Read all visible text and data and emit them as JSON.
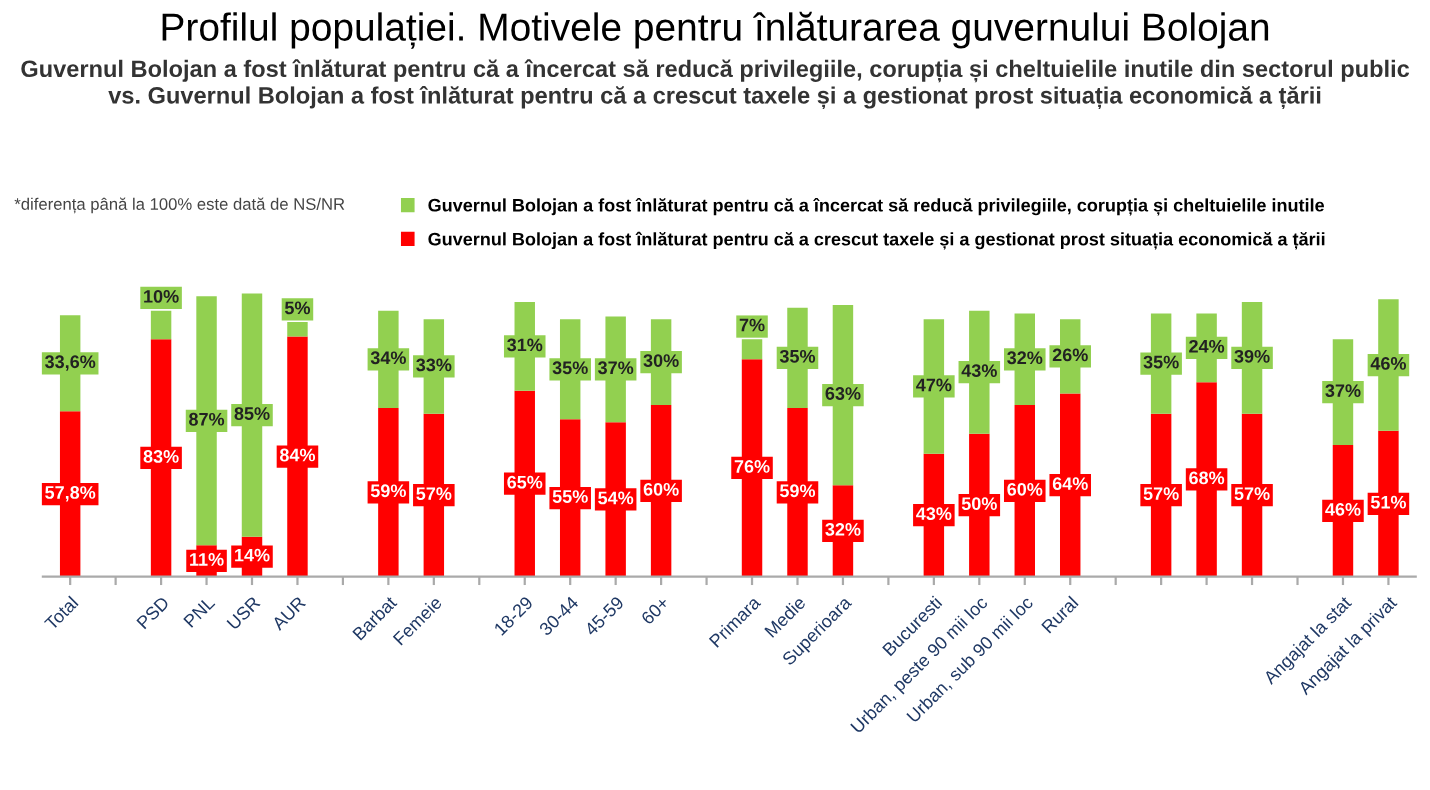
{
  "chart_data": {
    "type": "bar",
    "stacked": true,
    "title": "Profilul populației. Motivele pentru înlăturarea guvernului Bolojan",
    "subtitle": "Guvernul Bolojan a fost înlăturat pentru că a încercat să reducă privilegiile, corupția și cheltuielile inutile din sectorul public vs. Guvernul Bolojan a fost înlăturat pentru că a crescut taxele și a gestionat prost situația economică a țării",
    "categories": [
      "Total",
      null,
      "PSD",
      "PNL",
      "USR",
      "AUR",
      null,
      "Barbat",
      "Femeie",
      null,
      "18-29",
      "30-44",
      "45-59",
      "60+",
      null,
      "Primara",
      "Medie",
      "Superioara",
      null,
      "Bucuresti",
      "Urban, peste 90 mii loc",
      "Urban, sub 90 mii loc",
      "Rural",
      null,
      null,
      null,
      null,
      null,
      "Angajat la stat",
      "Angajat la privat"
    ],
    "series": [
      {
        "name": "Guvernul Bolojan a fost înlăturat pentru că a crescut taxele și a gestionat prost situația economică a țării",
        "color": "#ff0000",
        "values": [
          57.8,
          null,
          83,
          11,
          14,
          84,
          null,
          59,
          57,
          null,
          65,
          55,
          54,
          60,
          null,
          76,
          59,
          32,
          null,
          43,
          50,
          60,
          64,
          null,
          57,
          68,
          57,
          null,
          46,
          51
        ],
        "value_labels": [
          "57,8%",
          null,
          "83%",
          "11%",
          "14%",
          "84%",
          null,
          "59%",
          "57%",
          null,
          "65%",
          "55%",
          "54%",
          "60%",
          null,
          "76%",
          "59%",
          "32%",
          null,
          "43%",
          "50%",
          "60%",
          "64%",
          null,
          "57%",
          "68%",
          "57%",
          null,
          "46%",
          "51%"
        ]
      },
      {
        "name": "Guvernul Bolojan a fost înlăturat pentru că a încercat să reducă privilegiile, corupția și cheltuielile inutile",
        "color": "#92d050",
        "values": [
          33.6,
          null,
          10,
          87,
          85,
          5,
          null,
          34,
          33,
          null,
          31,
          35,
          37,
          30,
          null,
          7,
          35,
          63,
          null,
          47,
          43,
          32,
          26,
          null,
          35,
          24,
          39,
          null,
          37,
          46
        ],
        "value_labels": [
          "33,6%",
          null,
          "10%",
          "87%",
          "85%",
          "5%",
          null,
          "34%",
          "33%",
          null,
          "31%",
          "35%",
          "37%",
          "30%",
          null,
          "7%",
          "35%",
          "63%",
          null,
          "47%",
          "43%",
          "32%",
          "26%",
          null,
          "35%",
          "24%",
          "39%",
          null,
          "37%",
          "46%"
        ]
      }
    ],
    "legend": "top",
    "annotations": [
      "*diferența până la 100% este dată de NS/NR"
    ]
  }
}
